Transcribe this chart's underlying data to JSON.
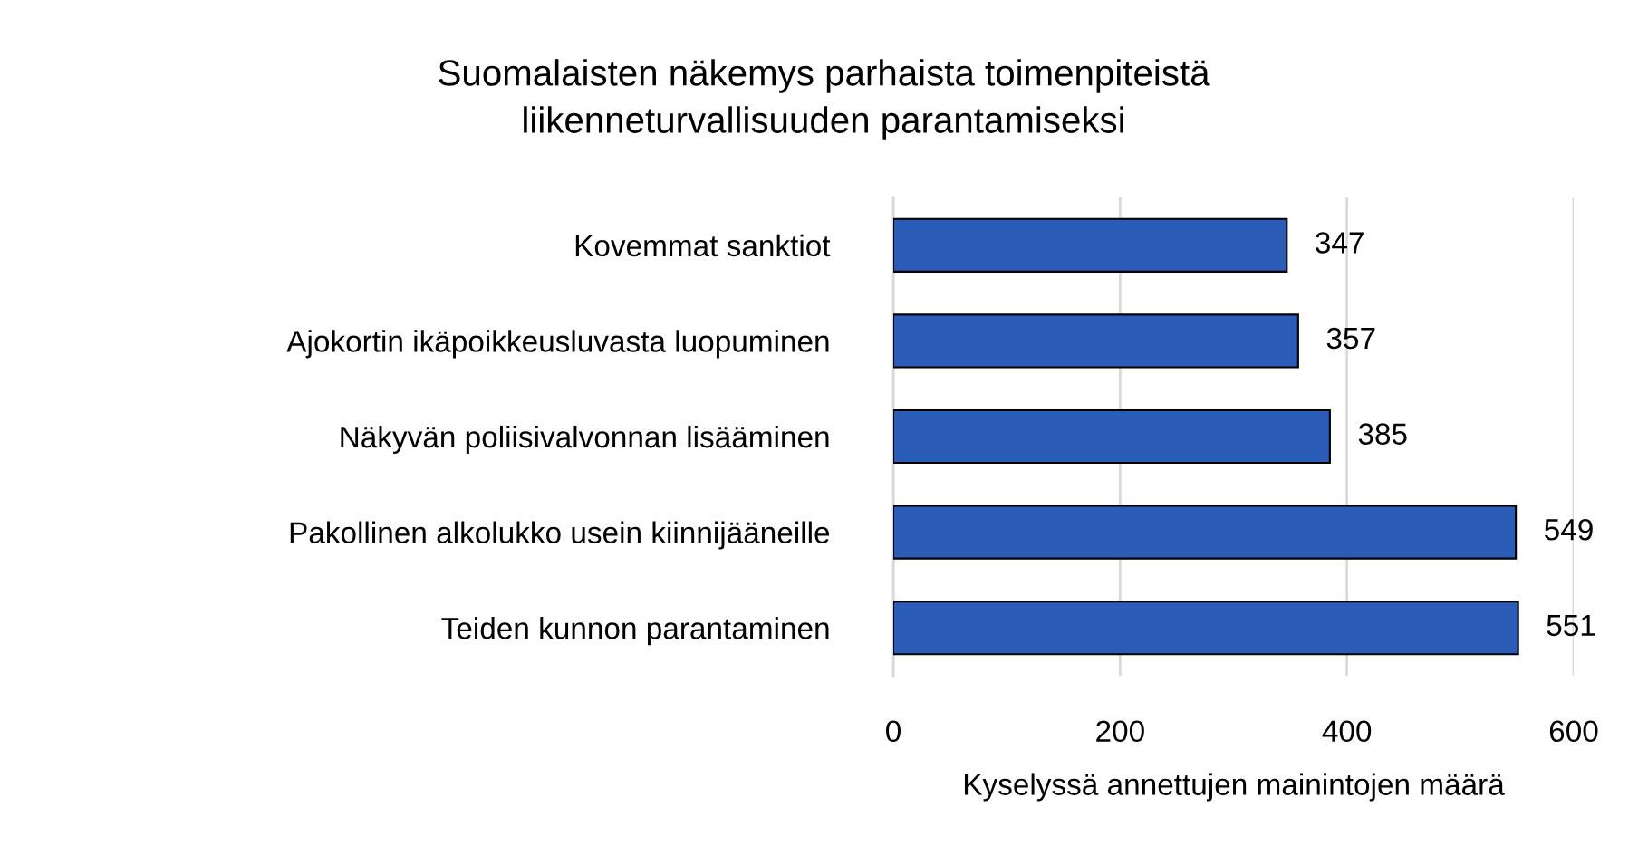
{
  "chart_data": {
    "type": "bar",
    "orientation": "horizontal",
    "title": "Suomalaisten näkemys parhaista toimenpiteistä\nliikenneturvallisuuden parantamiseksi",
    "xlabel": "Kyselyssä annettujen mainintojen määrä",
    "categories": [
      "Kovemmat sanktiot",
      "Ajokortin ikäpoikkeusluvasta luopuminen",
      "Näkyvän poliisivalvonnan lisääminen",
      "Pakollinen alkolukko usein kiinnijääneille",
      "Teiden kunnon parantaminen"
    ],
    "values": [
      347,
      357,
      385,
      549,
      551
    ],
    "color": "#2a5cb8",
    "xlim": [
      0,
      600
    ],
    "xticks": [
      0,
      200,
      400,
      600
    ],
    "grid": "x",
    "data_labels": true
  }
}
